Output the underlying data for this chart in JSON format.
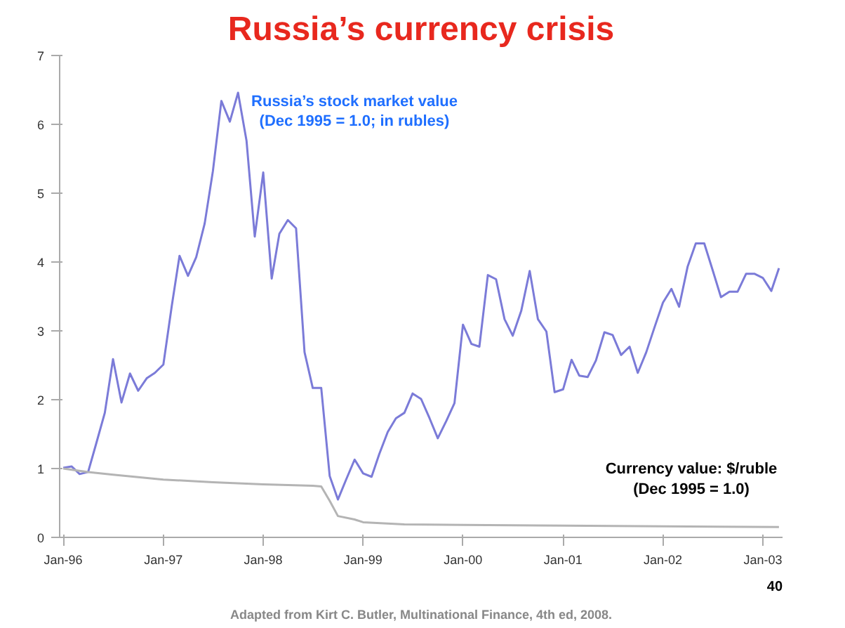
{
  "chart_data": {
    "type": "line",
    "title": "Russia’s currency crisis",
    "x": [
      "1996-01",
      "1996-02",
      "1996-03",
      "1996-04",
      "1996-05",
      "1996-06",
      "1996-07",
      "1996-08",
      "1996-09",
      "1996-10",
      "1996-11",
      "1996-12",
      "1997-01",
      "1997-02",
      "1997-03",
      "1997-04",
      "1997-05",
      "1997-06",
      "1997-07",
      "1997-08",
      "1997-09",
      "1997-10",
      "1997-11",
      "1997-12",
      "1998-01",
      "1998-02",
      "1998-03",
      "1998-04",
      "1998-05",
      "1998-06",
      "1998-07",
      "1998-08",
      "1998-09",
      "1998-10",
      "1998-11",
      "1998-12",
      "1999-01",
      "1999-02",
      "1999-03",
      "1999-04",
      "1999-05",
      "1999-06",
      "1999-07",
      "1999-08",
      "1999-09",
      "1999-10",
      "1999-11",
      "1999-12",
      "2000-01",
      "2000-02",
      "2000-03",
      "2000-04",
      "2000-05",
      "2000-06",
      "2000-07",
      "2000-08",
      "2000-09",
      "2000-10",
      "2000-11",
      "2000-12",
      "2001-01",
      "2001-02",
      "2001-03",
      "2001-04",
      "2001-05",
      "2001-06",
      "2001-07",
      "2001-08",
      "2001-09",
      "2001-10",
      "2001-11",
      "2001-12",
      "2002-01",
      "2002-02",
      "2002-03",
      "2002-04",
      "2002-05",
      "2002-06",
      "2002-07",
      "2002-08",
      "2002-09",
      "2002-10",
      "2002-11",
      "2002-12",
      "2003-01",
      "2003-02",
      "2003-03"
    ],
    "series": [
      {
        "name": "Russia’s stock market value\n(Dec 1995 = 1.0; in rubles)",
        "color": "#7b7bd8",
        "values": [
          1.01,
          1.03,
          0.92,
          0.95,
          1.37,
          1.81,
          2.59,
          1.96,
          2.38,
          2.13,
          2.31,
          2.39,
          2.51,
          3.37,
          4.09,
          3.8,
          4.07,
          4.56,
          5.32,
          6.34,
          6.04,
          6.46,
          5.76,
          4.37,
          5.3,
          3.76,
          4.41,
          4.61,
          4.49,
          2.69,
          2.17,
          2.17,
          0.89,
          0.55,
          0.85,
          1.13,
          0.93,
          0.88,
          1.21,
          1.53,
          1.73,
          1.81,
          2.09,
          2.01,
          1.73,
          1.44,
          1.69,
          1.95,
          3.09,
          2.81,
          2.77,
          3.81,
          3.75,
          3.17,
          2.93,
          3.29,
          3.87,
          3.17,
          2.99,
          2.11,
          2.15,
          2.58,
          2.35,
          2.33,
          2.57,
          2.98,
          2.94,
          2.65,
          2.77,
          2.39,
          2.69,
          3.05,
          3.41,
          3.61,
          3.35,
          3.93,
          4.27,
          4.27,
          3.89,
          3.49,
          3.57,
          3.57,
          3.83,
          3.83,
          3.77,
          3.58,
          3.91
        ]
      },
      {
        "name": "Currency value: $/ruble\n(Dec 1995 = 1.0)",
        "color": "#b4b4b4",
        "x": [
          "1996-01",
          "1996-04",
          "1996-07",
          "1997-01",
          "1997-07",
          "1998-01",
          "1998-07",
          "1998-08",
          "1998-09",
          "1998-10",
          "1998-12",
          "1999-01",
          "1999-06",
          "2000-01",
          "2001-01",
          "2002-01",
          "2003-03"
        ],
        "values": [
          1.0,
          0.95,
          0.91,
          0.84,
          0.8,
          0.77,
          0.75,
          0.74,
          0.53,
          0.31,
          0.26,
          0.22,
          0.19,
          0.18,
          0.17,
          0.16,
          0.15
        ]
      }
    ],
    "xlim": [
      "1996-01",
      "2003-03"
    ],
    "xticks": [
      {
        "value": "1996-01",
        "label": "Jan-96"
      },
      {
        "value": "1997-01",
        "label": "Jan-97"
      },
      {
        "value": "1998-01",
        "label": "Jan-98"
      },
      {
        "value": "1999-01",
        "label": "Jan-99"
      },
      {
        "value": "2000-01",
        "label": "Jan-00"
      },
      {
        "value": "2001-01",
        "label": "Jan-01"
      },
      {
        "value": "2002-01",
        "label": "Jan-02"
      },
      {
        "value": "2003-01",
        "label": "Jan-03"
      }
    ],
    "ylim": [
      0,
      7
    ],
    "yticks": [
      0,
      1,
      2,
      3,
      4,
      5,
      6,
      7
    ],
    "grid": false,
    "marker": "none",
    "line_style": "solid",
    "annotations": [
      "Adapted from Kirt C. Butler, Multinational Finance, 4th ed, 2008.",
      "40"
    ]
  }
}
